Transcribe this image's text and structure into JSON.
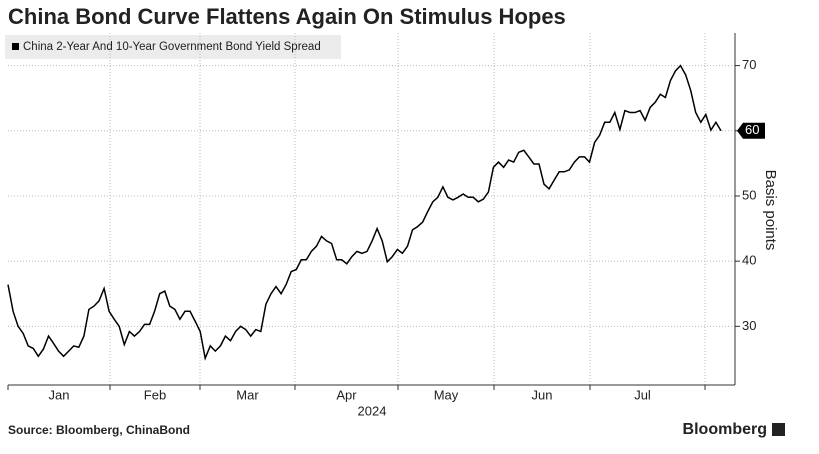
{
  "chart_data": {
    "type": "line",
    "title": "China Bond Curve Flattens Again On Stimulus Hopes",
    "series": [
      {
        "name": "China 2-Year And 10-Year Government Bond Yield Spread",
        "color": "#000000",
        "values": [
          36.4,
          32.3,
          30,
          28.9,
          27,
          26.6,
          25.4,
          26.5,
          28.5,
          27.4,
          26.2,
          25.4,
          26.2,
          27,
          26.8,
          28.5,
          32.6,
          33.1,
          33.9,
          35.8,
          32.3,
          31.1,
          30,
          27.2,
          29.2,
          28.5,
          29.2,
          30.3,
          30.3,
          32.3,
          35,
          35.4,
          33.1,
          32.6,
          31.1,
          32.3,
          32.3,
          30.8,
          29.2,
          25.1,
          27,
          26.2,
          27,
          28.5,
          27.8,
          29.2,
          30,
          29.5,
          28.5,
          29.5,
          29.2,
          33.4,
          35,
          36.1,
          35,
          36.4,
          38.4,
          38.7,
          40.2,
          40.2,
          41.5,
          42.3,
          43.8,
          43.1,
          42.7,
          40.2,
          40.2,
          39.6,
          40.7,
          41.5,
          41.2,
          41.5,
          43.1,
          45,
          43.1,
          39.9,
          40.7,
          41.8,
          41.2,
          42.3,
          44.8,
          45.3,
          46,
          47.6,
          49.1,
          49.8,
          51.4,
          49.8,
          49.4,
          49.8,
          50.3,
          49.8,
          49.8,
          49.1,
          49.5,
          50.6,
          54.4,
          55.2,
          54.4,
          55.5,
          55.2,
          56.7,
          57,
          56,
          54.9,
          54.9,
          51.8,
          51.1,
          52.4,
          53.7,
          53.7,
          54,
          55.2,
          56,
          56,
          55.2,
          58.2,
          59.3,
          61.3,
          61.3,
          62.8,
          60.2,
          63.1,
          62.8,
          62.8,
          63.1,
          61.6,
          63.6,
          64.4,
          65.6,
          65.1,
          67.7,
          69.2,
          70,
          68.6,
          66.2,
          62.8,
          61.3,
          62.5,
          60.1,
          61.3,
          60
        ]
      }
    ],
    "ylim": [
      21,
      75
    ],
    "yticks": [
      30,
      40,
      50,
      60,
      70
    ],
    "y_label": "Basis points",
    "month_labels": [
      "Jan",
      "Feb",
      "Mar",
      "Apr",
      "May",
      "Jun",
      "Jul"
    ],
    "year_label": "2024",
    "grid": true,
    "source": "Source: Bloomberg, ChinaBond",
    "brand": "Bloomberg"
  }
}
